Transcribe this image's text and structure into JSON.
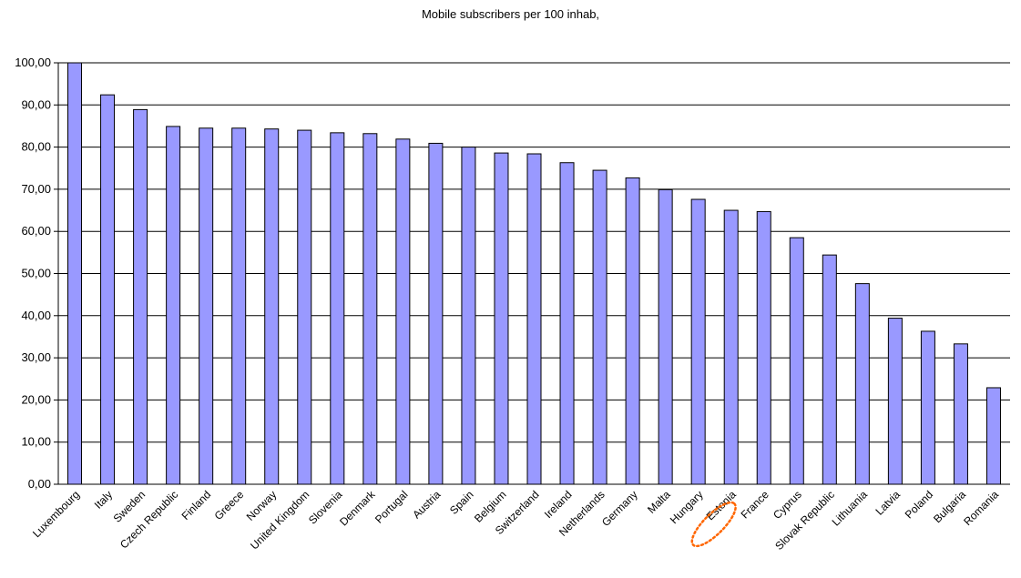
{
  "chart_data": {
    "type": "bar",
    "title": "Mobile subscribers per 100 inhab,",
    "xlabel": "",
    "ylabel": "",
    "ylim": [
      0,
      100
    ],
    "yticks": [
      0,
      10,
      20,
      30,
      40,
      50,
      60,
      70,
      80,
      90,
      100
    ],
    "ytick_labels": [
      "0,00",
      "10,00",
      "20,00",
      "30,00",
      "40,00",
      "50,00",
      "60,00",
      "70,00",
      "80,00",
      "90,00",
      "100,00"
    ],
    "grid": true,
    "categories": [
      "Luxembourg",
      "Italy",
      "Sweden",
      "Czech Republic",
      "Finland",
      "Greece",
      "Norway",
      "United Kingdom",
      "Slovenia",
      "Denmark",
      "Portugal",
      "Austria",
      "Spain",
      "Belgium",
      "Switzerland",
      "Ireland",
      "Netherlands",
      "Germany",
      "Malta",
      "Hungary",
      "Estonia",
      "France",
      "Cyprus",
      "Slovak Republic",
      "Lithuania",
      "Latvia",
      "Poland",
      "Bulgaria",
      "Romania"
    ],
    "values": [
      100.0,
      92.4,
      88.9,
      84.9,
      84.5,
      84.5,
      84.3,
      84.0,
      83.4,
      83.2,
      81.9,
      80.9,
      80.0,
      78.6,
      78.4,
      76.3,
      74.5,
      72.7,
      69.9,
      67.6,
      65.0,
      64.7,
      58.5,
      54.4,
      47.6,
      39.4,
      36.3,
      33.3,
      22.9
    ],
    "bar_color": "#9999ff",
    "bar_border_color": "#000000",
    "highlight": {
      "category": "Estonia",
      "color": "#ff6600"
    }
  }
}
